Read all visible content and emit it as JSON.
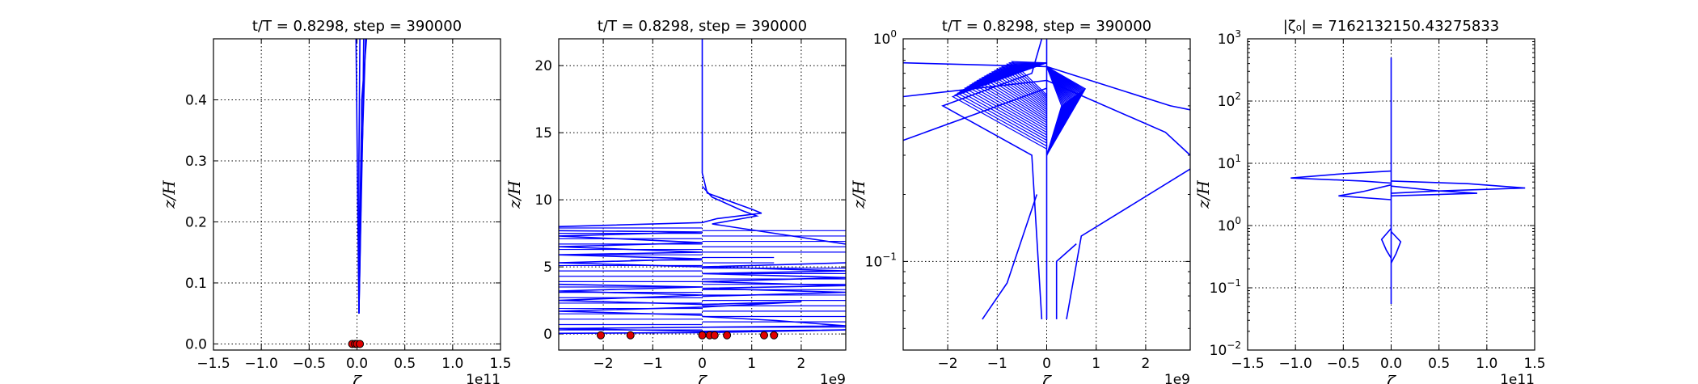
{
  "chart_data": [
    {
      "type": "line",
      "title": "t/T = 0.8298, step = 390000",
      "xlabel": "ζ",
      "ylabel": "z/H",
      "x_offset_label": "1e11",
      "xlim": [
        -1.5,
        1.5
      ],
      "ylim": [
        -0.01,
        0.5
      ],
      "yscale": "linear",
      "xticks": [
        "−1.5",
        "−1.0",
        "−0.5",
        "0.0",
        "0.5",
        "1.0",
        "1.5"
      ],
      "yticks": [
        "0.0",
        "0.1",
        "0.2",
        "0.3",
        "0.4"
      ],
      "grid": true,
      "series": [
        {
          "color": "#0000ff",
          "points": [
            [
              0.02,
              0.05
            ],
            [
              0.04,
              0.2
            ],
            [
              0.06,
              0.35
            ],
            [
              0.07,
              0.5
            ]
          ]
        },
        {
          "color": "#0000ff",
          "points": [
            [
              0.02,
              0.05
            ],
            [
              0.01,
              0.2
            ],
            [
              0.0,
              0.35
            ],
            [
              -0.01,
              0.5
            ]
          ]
        },
        {
          "color": "#0000ff",
          "points": [
            [
              0.02,
              0.05
            ],
            [
              0.03,
              0.2
            ],
            [
              0.05,
              0.4
            ],
            [
              0.1,
              0.5
            ]
          ]
        },
        {
          "color": "#0000ff",
          "points": [
            [
              0.02,
              0.05
            ],
            [
              0.02,
              0.3
            ],
            [
              0.03,
              0.5
            ]
          ]
        },
        {
          "color": "#0000ff",
          "points": [
            [
              0.02,
              0.05
            ],
            [
              0.05,
              0.3
            ],
            [
              0.08,
              0.45
            ],
            [
              0.09,
              0.5
            ]
          ]
        }
      ],
      "markers": {
        "color": "#e00000",
        "points": [
          [
            -0.05,
            0.0
          ],
          [
            -0.02,
            0.0
          ],
          [
            0.0,
            0.0
          ],
          [
            0.03,
            0.0
          ]
        ]
      }
    },
    {
      "type": "line",
      "title": "t/T = 0.8298, step = 390000",
      "xlabel": "ζ",
      "ylabel": "z/H",
      "x_offset_label": "1e9",
      "xlim": [
        -2.9,
        2.9
      ],
      "ylim": [
        -1.2,
        22
      ],
      "yscale": "linear",
      "xticks": [
        "−2",
        "−1",
        "0",
        "1",
        "2"
      ],
      "yticks": [
        "0",
        "5",
        "10",
        "15",
        "20"
      ],
      "grid": true,
      "series": [
        {
          "color": "#0000ff",
          "points": [
            [
              0,
              22
            ],
            [
              0,
              12
            ],
            [
              0.1,
              10.5
            ],
            [
              1.0,
              9.3
            ],
            [
              1.2,
              9.0
            ],
            [
              0.3,
              8.6
            ],
            [
              0,
              8.3
            ],
            [
              -2.9,
              8.0
            ]
          ]
        },
        {
          "color": "#0000ff",
          "points": [
            [
              0,
              11
            ],
            [
              0.2,
              10.2
            ],
            [
              0.8,
              9.2
            ],
            [
              1.1,
              8.8
            ],
            [
              0.2,
              8.2
            ],
            [
              2.9,
              6.7
            ]
          ]
        },
        {
          "color": "#0000ff",
          "points": [
            [
              -2.9,
              7.7
            ],
            [
              0,
              7.6
            ],
            [
              -2.9,
              7.3
            ],
            [
              0,
              6.8
            ],
            [
              -2.9,
              6.5
            ],
            [
              0,
              6.1
            ],
            [
              -2.9,
              5.9
            ],
            [
              0,
              5.6
            ],
            [
              -2.9,
              5.3
            ],
            [
              0,
              5.0
            ]
          ]
        },
        {
          "color": "#0000ff",
          "points": [
            [
              2.9,
              5.3
            ],
            [
              0,
              5.0
            ],
            [
              2.9,
              4.7
            ],
            [
              0,
              4.5
            ],
            [
              2.9,
              4.2
            ],
            [
              0,
              3.9
            ],
            [
              2.9,
              3.6
            ],
            [
              0,
              3.4
            ],
            [
              2.9,
              3.1
            ],
            [
              0,
              2.8
            ]
          ]
        },
        {
          "color": "#0000ff",
          "points": [
            [
              -2.9,
              3.7
            ],
            [
              0,
              3.5
            ],
            [
              -2.9,
              3.2
            ],
            [
              0,
              2.9
            ],
            [
              -2.9,
              2.5
            ],
            [
              0,
              2.2
            ],
            [
              2.0,
              2.4
            ],
            [
              0,
              2.0
            ],
            [
              -2.9,
              1.7
            ],
            [
              0,
              1.4
            ]
          ]
        },
        {
          "color": "#0000ff",
          "points": [
            [
              0,
              1.3
            ],
            [
              1.5,
              1.0
            ],
            [
              2.9,
              0.6
            ],
            [
              0,
              0.5
            ],
            [
              -2.9,
              0.4
            ],
            [
              0,
              0.2
            ],
            [
              2.9,
              0.3
            ],
            [
              0,
              0.1
            ],
            [
              -2.9,
              0.05
            ]
          ]
        }
      ],
      "markers": {
        "color": "#e00000",
        "points": [
          [
            -2.05,
            -0.1
          ],
          [
            -1.45,
            -0.1
          ],
          [
            0,
            -0.1
          ],
          [
            0.15,
            -0.1
          ],
          [
            0.25,
            -0.1
          ],
          [
            0.5,
            -0.1
          ],
          [
            1.25,
            -0.1
          ],
          [
            1.45,
            -0.1
          ]
        ]
      }
    },
    {
      "type": "line",
      "title": "t/T = 0.8298, step = 390000",
      "xlabel": "ζ",
      "ylabel": "z/H",
      "x_offset_label": "1e9",
      "xlim": [
        -2.9,
        2.9
      ],
      "ylim": [
        0.04,
        1.0
      ],
      "yscale": "log",
      "xticks": [
        "−2",
        "−1",
        "0",
        "1",
        "2"
      ],
      "yticks": [
        {
          "value": 0.1,
          "base": "10",
          "exp": "−1"
        },
        {
          "value": 1,
          "base": "10",
          "exp": "0"
        }
      ],
      "grid": true,
      "series": [
        {
          "color": "#0000ff",
          "points": [
            [
              0,
              1.0
            ],
            [
              0,
              0.5
            ],
            [
              0,
              0.055
            ]
          ]
        },
        {
          "color": "#0000ff",
          "points": [
            [
              -0.1,
              1.0
            ],
            [
              -0.3,
              0.7
            ],
            [
              -2.1,
              0.5
            ],
            [
              -0.3,
              0.3
            ],
            [
              -0.1,
              0.055
            ]
          ]
        },
        {
          "color": "#0000ff",
          "points": [
            [
              0,
              0.75
            ],
            [
              -2.9,
              0.78
            ]
          ]
        },
        {
          "color": "#0000ff",
          "points": [
            [
              0,
              0.65
            ],
            [
              -2.9,
              0.55
            ]
          ]
        },
        {
          "color": "#0000ff",
          "points": [
            [
              0,
              0.6
            ],
            [
              -2.9,
              0.35
            ]
          ]
        },
        {
          "color": "#0000ff",
          "points": [
            [
              0,
              0.75
            ],
            [
              2.5,
              0.5
            ],
            [
              2.9,
              0.48
            ]
          ]
        },
        {
          "color": "#0000ff",
          "points": [
            [
              0,
              0.65
            ],
            [
              2.4,
              0.38
            ],
            [
              2.9,
              0.3
            ]
          ]
        },
        {
          "color": "#0000ff",
          "points": [
            [
              0.6,
              0.12
            ],
            [
              0.2,
              0.1
            ],
            [
              0.2,
              0.055
            ]
          ]
        },
        {
          "color": "#0000ff",
          "points": [
            [
              2.9,
              0.26
            ],
            [
              0.7,
              0.13
            ],
            [
              0.4,
              0.055
            ]
          ]
        },
        {
          "color": "#0000ff",
          "points": [
            [
              -0.2,
              0.2
            ],
            [
              -0.8,
              0.08
            ],
            [
              -1.3,
              0.055
            ]
          ]
        }
      ],
      "markers": null
    },
    {
      "type": "line",
      "title": "|ζ₀| = 7162132150.43275833",
      "xlabel": "ζ",
      "ylabel": "z/H",
      "x_offset_label": "1e11",
      "xlim": [
        -1.5,
        1.5
      ],
      "ylim": [
        0.01,
        1000
      ],
      "yscale": "log",
      "xticks": [
        "−1.5",
        "−1.0",
        "−0.5",
        "0.0",
        "0.5",
        "1.0",
        "1.5"
      ],
      "yticks": [
        {
          "value": 0.01,
          "base": "10",
          "exp": "−2"
        },
        {
          "value": 0.1,
          "base": "10",
          "exp": "−1"
        },
        {
          "value": 1,
          "base": "10",
          "exp": "0"
        },
        {
          "value": 10,
          "base": "10",
          "exp": "1"
        },
        {
          "value": 100,
          "base": "10",
          "exp": "2"
        },
        {
          "value": 1000,
          "base": "10",
          "exp": "3"
        }
      ],
      "grid": true,
      "series": [
        {
          "color": "#0000ff",
          "points": [
            [
              0,
              500
            ],
            [
              0,
              0.055
            ]
          ]
        },
        {
          "color": "#0000ff",
          "points": [
            [
              0,
              7.5
            ],
            [
              -0.5,
              6.8
            ],
            [
              -1.05,
              5.8
            ],
            [
              -0.3,
              5.2
            ],
            [
              0,
              4.8
            ]
          ]
        },
        {
          "color": "#0000ff",
          "points": [
            [
              0,
              5.2
            ],
            [
              0.8,
              4.7
            ],
            [
              1.4,
              4.0
            ],
            [
              0.5,
              3.6
            ],
            [
              0,
              3.3
            ]
          ]
        },
        {
          "color": "#0000ff",
          "points": [
            [
              0,
              4.5
            ],
            [
              -0.3,
              3.5
            ],
            [
              -0.55,
              3.0
            ],
            [
              0,
              2.6
            ]
          ]
        },
        {
          "color": "#0000ff",
          "points": [
            [
              0,
              4.3
            ],
            [
              0.5,
              3.6
            ],
            [
              0.9,
              3.3
            ],
            [
              0,
              3.0
            ]
          ]
        },
        {
          "color": "#0000ff",
          "points": [
            [
              0,
              0.9
            ],
            [
              -0.1,
              0.6
            ],
            [
              -0.05,
              0.4
            ],
            [
              0,
              0.3
            ]
          ]
        },
        {
          "color": "#0000ff",
          "points": [
            [
              0,
              0.8
            ],
            [
              0.1,
              0.55
            ],
            [
              0.05,
              0.35
            ],
            [
              0,
              0.25
            ]
          ]
        }
      ],
      "markers": null
    }
  ]
}
